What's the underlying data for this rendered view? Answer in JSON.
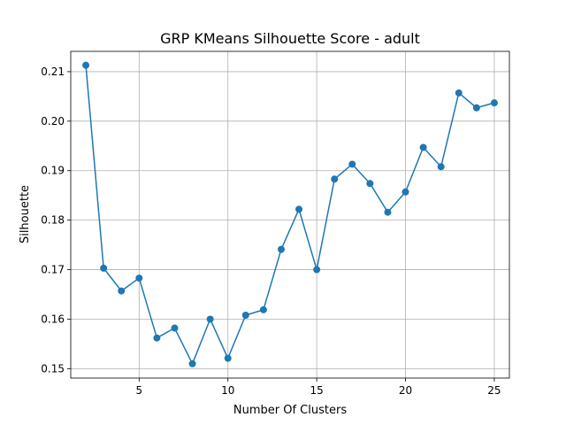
{
  "chart_data": {
    "type": "line",
    "title": "GRP KMeans Silhouette Score - adult",
    "xlabel": "Number Of Clusters",
    "ylabel": "Silhouette",
    "xlim": [
      1.15,
      25.85
    ],
    "ylim": [
      0.1481,
      0.2141
    ],
    "xticks": [
      5,
      10,
      15,
      20,
      25
    ],
    "yticks": [
      0.15,
      0.16,
      0.17,
      0.18,
      0.19,
      0.2,
      0.21
    ],
    "ytick_labels": [
      "0.15",
      "0.16",
      "0.17",
      "0.18",
      "0.19",
      "0.20",
      "0.21"
    ],
    "grid": true,
    "color": "#1f77b4",
    "marker": "circle",
    "series": [
      {
        "x": [
          2,
          3,
          4,
          5,
          6,
          7,
          8,
          9,
          10,
          11,
          12,
          13,
          14,
          15,
          16,
          17,
          18,
          19,
          20,
          21,
          22,
          23,
          24,
          25
        ],
        "y": [
          0.2113,
          0.1703,
          0.1657,
          0.1683,
          0.1562,
          0.1582,
          0.151,
          0.16,
          0.1521,
          0.1608,
          0.1619,
          0.1741,
          0.1822,
          0.17,
          0.1883,
          0.1913,
          0.1874,
          0.1816,
          0.1857,
          0.1947,
          0.1908,
          0.2057,
          0.2027,
          0.2037
        ]
      }
    ]
  }
}
